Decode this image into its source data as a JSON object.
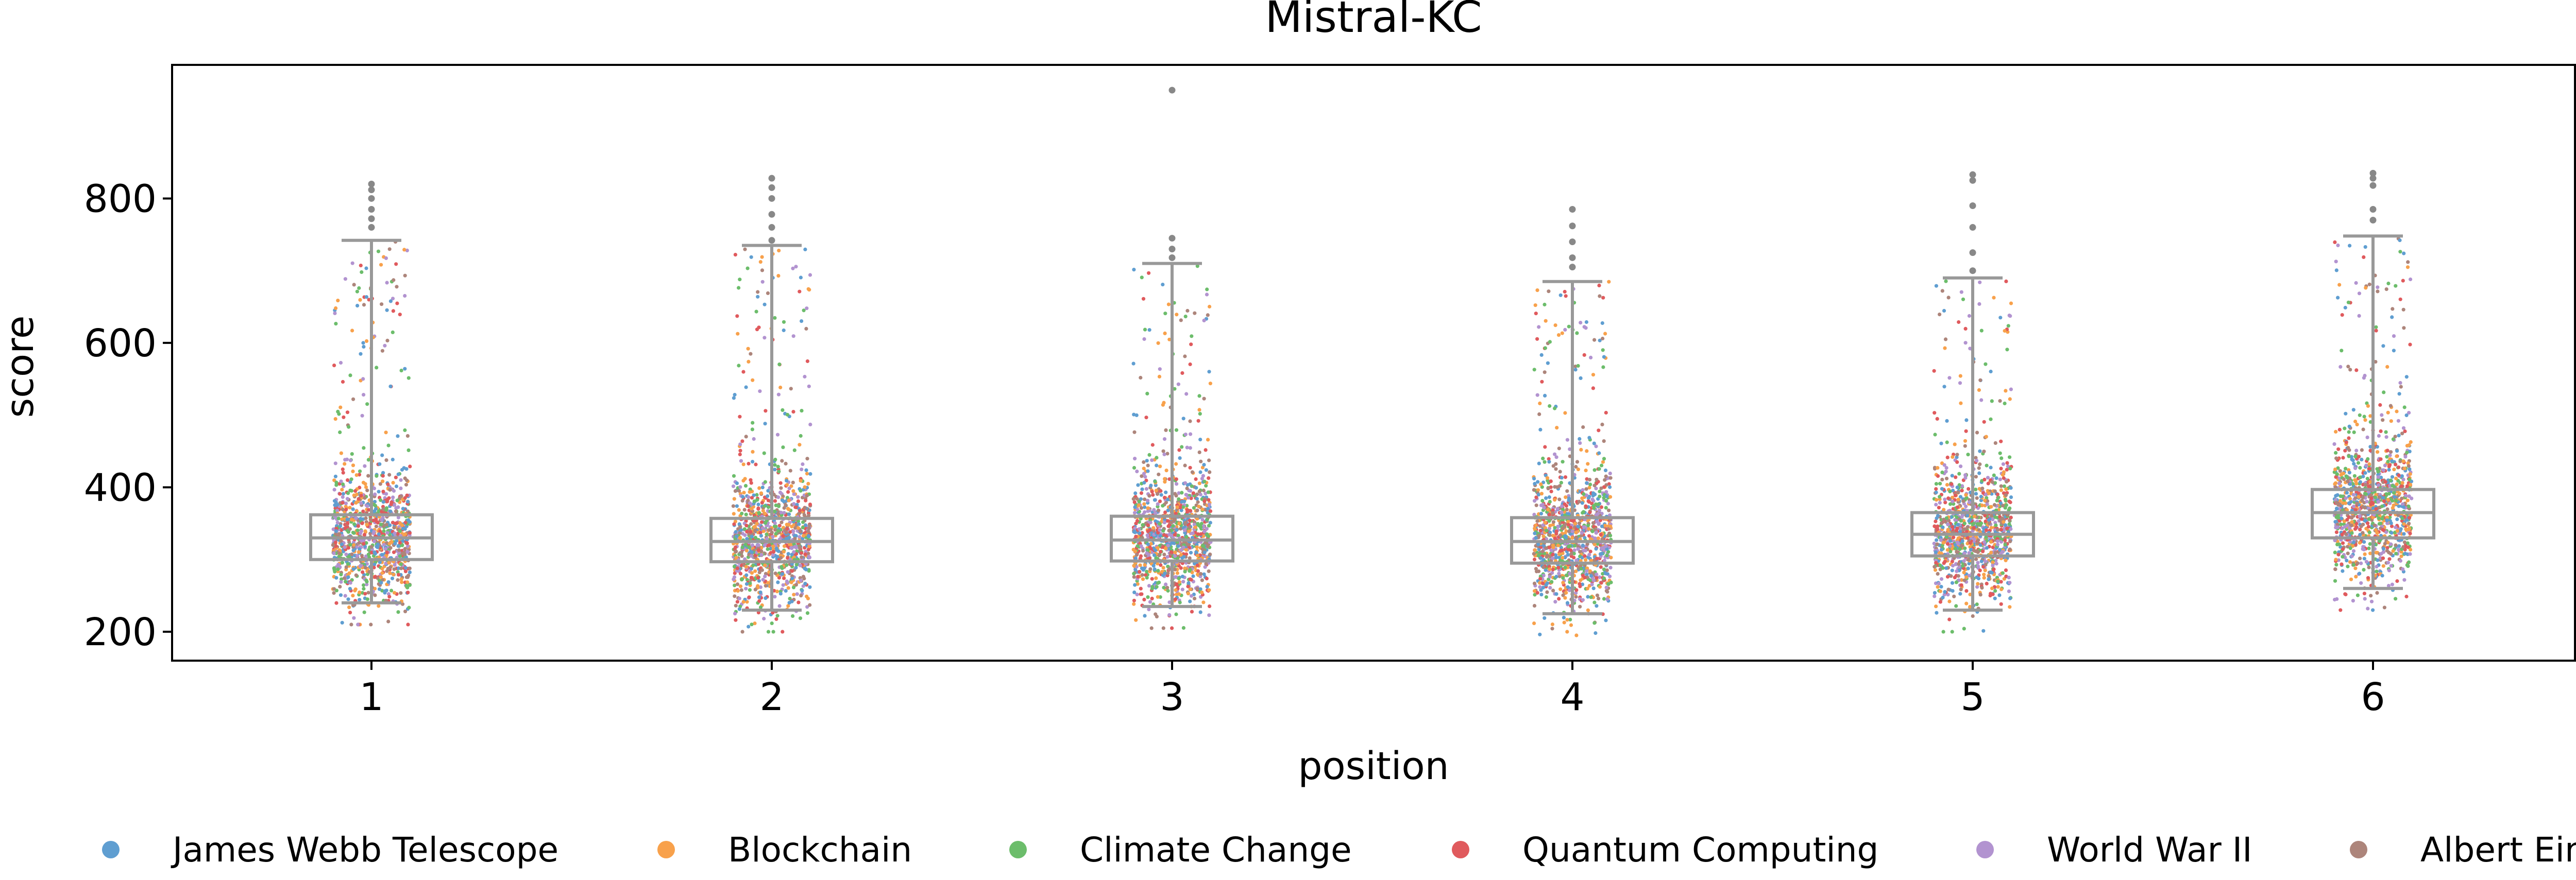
{
  "chart_data": {
    "type": "box+strip",
    "title": "Mistral-KC",
    "xlabel": "position",
    "ylabel": "score",
    "categories": [
      "1",
      "2",
      "3",
      "4",
      "5",
      "6"
    ],
    "yticks": [
      200,
      400,
      600,
      800
    ],
    "ylim": [
      160,
      985
    ],
    "grid": false,
    "legend_position": "bottom",
    "box_color": "#999999",
    "points_per_series_per_category": 180,
    "series": [
      {
        "name": "James Webb Telescope",
        "color": "#5f9ed1"
      },
      {
        "name": "Blockchain",
        "color": "#f8a14b"
      },
      {
        "name": "Climate Change",
        "color": "#6cbd6b"
      },
      {
        "name": "Quantum Computing",
        "color": "#e05a5d"
      },
      {
        "name": "World War II",
        "color": "#b293d0"
      },
      {
        "name": "Albert Einstein",
        "color": "#ad857b"
      }
    ],
    "boxes": [
      {
        "position": "1",
        "whislo": 240,
        "q1": 300,
        "med": 330,
        "q3": 362,
        "whishi": 742,
        "fliers": [
          760,
          772,
          785,
          800,
          812,
          820
        ]
      },
      {
        "position": "2",
        "whislo": 230,
        "q1": 297,
        "med": 325,
        "q3": 357,
        "whishi": 735,
        "fliers": [
          742,
          760,
          778,
          800,
          815,
          828
        ]
      },
      {
        "position": "3",
        "whislo": 235,
        "q1": 298,
        "med": 327,
        "q3": 360,
        "whishi": 710,
        "fliers": [
          718,
          730,
          745,
          950
        ]
      },
      {
        "position": "4",
        "whislo": 225,
        "q1": 295,
        "med": 325,
        "q3": 358,
        "whishi": 685,
        "fliers": [
          705,
          718,
          740,
          762,
          785
        ]
      },
      {
        "position": "5",
        "whislo": 230,
        "q1": 305,
        "med": 335,
        "q3": 365,
        "whishi": 690,
        "fliers": [
          700,
          725,
          760,
          790,
          825,
          833
        ]
      },
      {
        "position": "6",
        "whislo": 260,
        "q1": 330,
        "med": 365,
        "q3": 397,
        "whishi": 748,
        "fliers": [
          770,
          785,
          818,
          828,
          835
        ]
      }
    ]
  }
}
